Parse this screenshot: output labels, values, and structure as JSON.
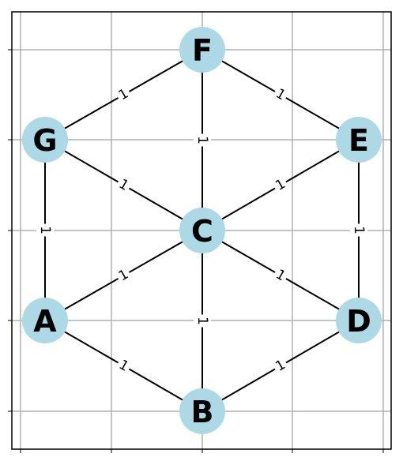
{
  "graph": {
    "node_color": "#add8e6",
    "nodes": [
      {
        "id": "F",
        "label": "F"
      },
      {
        "id": "G",
        "label": "G"
      },
      {
        "id": "E",
        "label": "E"
      },
      {
        "id": "C",
        "label": "C"
      },
      {
        "id": "A",
        "label": "A"
      },
      {
        "id": "D",
        "label": "D"
      },
      {
        "id": "B",
        "label": "B"
      }
    ],
    "edges": [
      {
        "source": "F",
        "target": "G",
        "weight": "1"
      },
      {
        "source": "F",
        "target": "E",
        "weight": "1"
      },
      {
        "source": "F",
        "target": "C",
        "weight": "1"
      },
      {
        "source": "G",
        "target": "C",
        "weight": "1"
      },
      {
        "source": "E",
        "target": "C",
        "weight": "1"
      },
      {
        "source": "G",
        "target": "A",
        "weight": "1"
      },
      {
        "source": "E",
        "target": "D",
        "weight": "1"
      },
      {
        "source": "A",
        "target": "C",
        "weight": "1"
      },
      {
        "source": "C",
        "target": "D",
        "weight": "1"
      },
      {
        "source": "C",
        "target": "B",
        "weight": "1"
      },
      {
        "source": "A",
        "target": "B",
        "weight": "1"
      },
      {
        "source": "D",
        "target": "B",
        "weight": "1"
      }
    ]
  }
}
